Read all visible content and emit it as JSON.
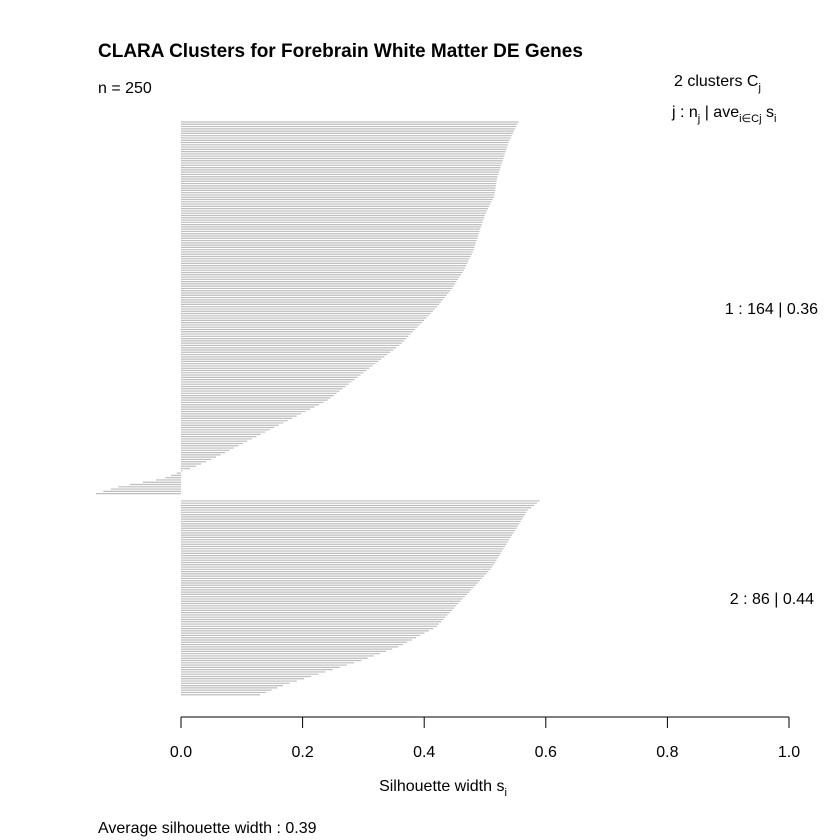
{
  "chart_data": {
    "type": "silhouette-bar",
    "title": "CLARA Clusters for Forebrain White Matter DE Genes",
    "n_label": "n = 250",
    "header_line1_main": "2  clusters  C",
    "header_line1_sub": "j",
    "header_line2": {
      "j": "j :  n",
      "j_sub": "j",
      "bar_ave": " | ave",
      "ave_sub": "i∈Cj",
      "s": "  s",
      "s_sub": "i"
    },
    "xlabel_main": "Silhouette width s",
    "xlabel_sub": "i",
    "footer": "Average silhouette width :  0.39",
    "xlim": [
      0,
      1
    ],
    "x_ticks": [
      "0.0",
      "0.2",
      "0.4",
      "0.6",
      "0.8",
      "1.0"
    ],
    "x_tick_values": [
      0,
      0.2,
      0.4,
      0.6,
      0.8,
      1.0
    ],
    "bar_color": "#bebebe",
    "clusters": [
      {
        "id": 1,
        "size": 164,
        "avg_width": 0.36,
        "label": "1 :   164  |  0.36",
        "width_profile": [
          [
            0,
            0.555
          ],
          [
            0.05,
            0.54
          ],
          [
            0.1,
            0.53
          ],
          [
            0.15,
            0.52
          ],
          [
            0.2,
            0.515
          ],
          [
            0.25,
            0.5
          ],
          [
            0.3,
            0.49
          ],
          [
            0.35,
            0.48
          ],
          [
            0.4,
            0.465
          ],
          [
            0.45,
            0.445
          ],
          [
            0.5,
            0.42
          ],
          [
            0.55,
            0.39
          ],
          [
            0.6,
            0.36
          ],
          [
            0.65,
            0.32
          ],
          [
            0.7,
            0.28
          ],
          [
            0.75,
            0.24
          ],
          [
            0.8,
            0.18
          ],
          [
            0.85,
            0.12
          ],
          [
            0.9,
            0.06
          ],
          [
            0.93,
            0.02
          ],
          [
            0.94,
            0.0
          ],
          [
            0.96,
            -0.03
          ],
          [
            0.98,
            -0.1
          ],
          [
            1.0,
            -0.14
          ]
        ]
      },
      {
        "id": 2,
        "size": 86,
        "avg_width": 0.44,
        "label": "2 :   86  |  0.44",
        "width_profile": [
          [
            0,
            0.59
          ],
          [
            0.05,
            0.57
          ],
          [
            0.15,
            0.55
          ],
          [
            0.25,
            0.53
          ],
          [
            0.35,
            0.51
          ],
          [
            0.45,
            0.48
          ],
          [
            0.55,
            0.45
          ],
          [
            0.65,
            0.42
          ],
          [
            0.75,
            0.36
          ],
          [
            0.82,
            0.3
          ],
          [
            0.9,
            0.22
          ],
          [
            0.95,
            0.17
          ],
          [
            1.0,
            0.13
          ]
        ]
      }
    ]
  }
}
